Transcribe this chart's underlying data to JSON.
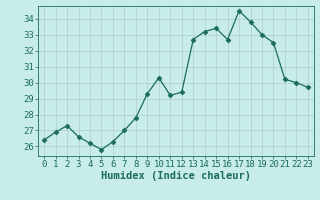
{
  "x": [
    0,
    1,
    2,
    3,
    4,
    5,
    6,
    7,
    8,
    9,
    10,
    11,
    12,
    13,
    14,
    15,
    16,
    17,
    18,
    19,
    20,
    21,
    22,
    23
  ],
  "y": [
    26.4,
    26.9,
    27.3,
    26.6,
    26.2,
    25.8,
    26.3,
    27.0,
    27.8,
    29.3,
    30.3,
    29.2,
    29.4,
    32.7,
    33.2,
    33.4,
    32.7,
    34.5,
    33.8,
    33.0,
    32.5,
    30.2,
    30.0,
    29.7
  ],
  "line_color": "#1a6b5e",
  "marker": "D",
  "marker_size": 2.5,
  "bg_color": "#c8ece8",
  "grid_color": "#b0ccc8",
  "xlabel": "Humidex (Indice chaleur)",
  "xlabel_fontsize": 7.5,
  "tick_fontsize": 6.5,
  "ylim": [
    25.4,
    34.8
  ],
  "xlim": [
    -0.5,
    23.5
  ],
  "yticks": [
    26,
    27,
    28,
    29,
    30,
    31,
    32,
    33,
    34
  ],
  "xticks": [
    0,
    1,
    2,
    3,
    4,
    5,
    6,
    7,
    8,
    9,
    10,
    11,
    12,
    13,
    14,
    15,
    16,
    17,
    18,
    19,
    20,
    21,
    22,
    23
  ]
}
